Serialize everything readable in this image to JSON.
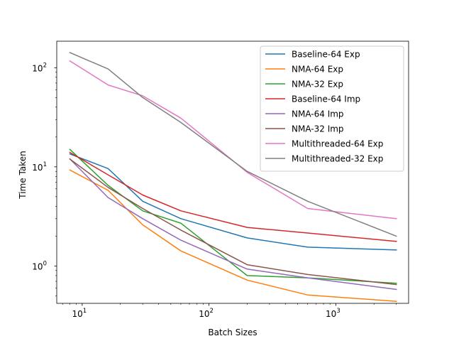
{
  "chart_data": {
    "type": "line",
    "xlabel": "Batch Sizes",
    "ylabel": "Time Taken",
    "xscale": "log",
    "yscale": "log",
    "xlim": [
      6.3,
      3750
    ],
    "ylim": [
      0.42,
      185
    ],
    "x_ticks": [
      {
        "value": 10,
        "base": "10",
        "exp": "1"
      },
      {
        "value": 100,
        "base": "10",
        "exp": "2"
      },
      {
        "value": 1000,
        "base": "10",
        "exp": "3"
      }
    ],
    "y_ticks": [
      {
        "value": 1,
        "base": "10",
        "exp": "0"
      },
      {
        "value": 10,
        "base": "10",
        "exp": "1"
      },
      {
        "value": 100,
        "base": "10",
        "exp": "2"
      }
    ],
    "grid": false,
    "legend_position": "top-right",
    "x": [
      8,
      16,
      30,
      60,
      200,
      600,
      3000
    ],
    "series": [
      {
        "name": "Baseline-64 Exp",
        "color": "#1f77b4",
        "values": [
          13.5,
          9.6,
          4.5,
          3.0,
          1.92,
          1.55,
          1.45
        ]
      },
      {
        "name": "NMA-64 Exp",
        "color": "#ff7f0e",
        "values": [
          9.3,
          5.8,
          2.6,
          1.42,
          0.72,
          0.51,
          0.44
        ]
      },
      {
        "name": "NMA-32 Exp",
        "color": "#2ca02c",
        "values": [
          15.0,
          6.5,
          3.6,
          2.7,
          0.8,
          0.76,
          0.67
        ]
      },
      {
        "name": "Baseline-64 Imp",
        "color": "#d62728",
        "values": [
          14.0,
          8.3,
          5.2,
          3.6,
          2.45,
          2.15,
          1.77
        ]
      },
      {
        "name": "NMA-64 Imp",
        "color": "#9467bd",
        "values": [
          12.0,
          4.9,
          3.0,
          1.82,
          0.93,
          0.76,
          0.58
        ]
      },
      {
        "name": "NMA-32 Imp",
        "color": "#8c564b",
        "values": [
          12.0,
          6.2,
          3.8,
          2.3,
          1.03,
          0.82,
          0.65
        ]
      },
      {
        "name": "Multithreaded-64 Exp",
        "color": "#e377c2",
        "values": [
          117,
          67,
          52,
          31,
          8.8,
          3.8,
          3.0
        ]
      },
      {
        "name": "Multithreaded-32 Exp",
        "color": "#7f7f7f",
        "values": [
          142,
          97,
          50,
          28,
          9.0,
          4.5,
          2.0
        ]
      }
    ]
  }
}
